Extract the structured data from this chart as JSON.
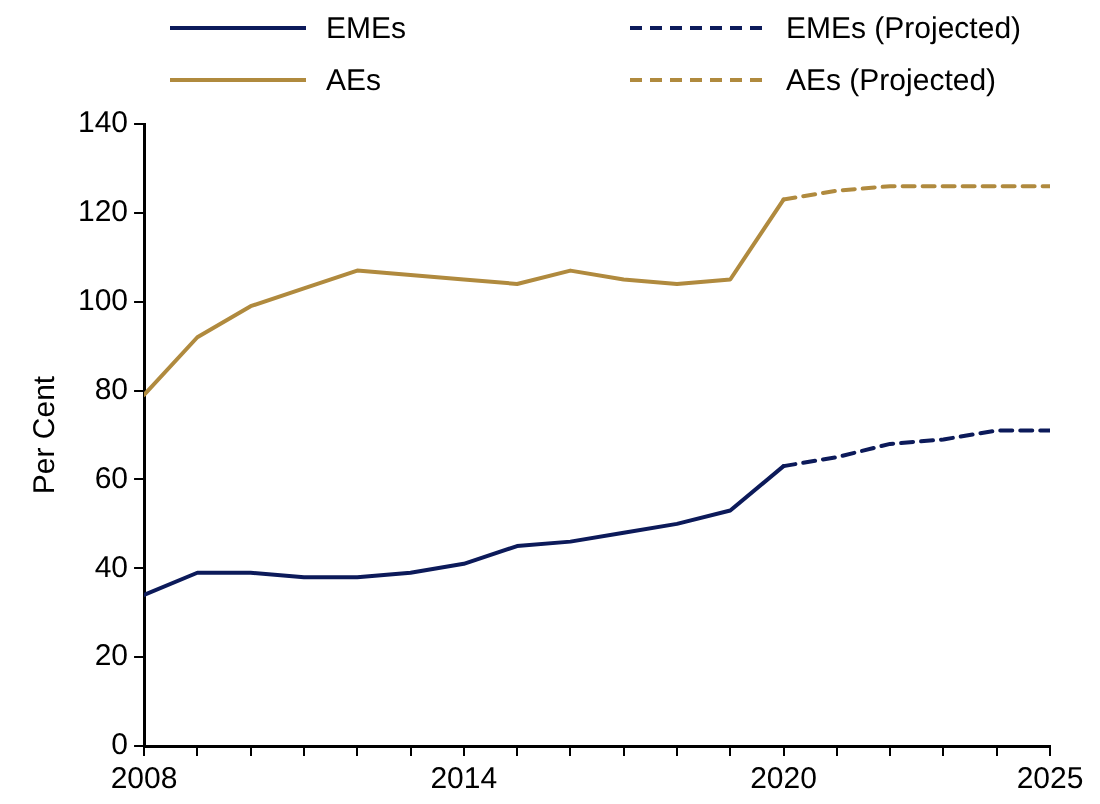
{
  "chart_data": {
    "type": "line",
    "ylabel": "Per Cent",
    "xlim": [
      2008,
      2025
    ],
    "xticks": [
      2008,
      {
        "value": 2009,
        "label": null
      },
      {
        "value": 2010,
        "label": null
      },
      {
        "value": 2011,
        "label": null
      },
      {
        "value": 2012,
        "label": null
      },
      {
        "value": 2013,
        "label": null
      },
      2014,
      {
        "value": 2015,
        "label": null
      },
      {
        "value": 2016,
        "label": null
      },
      {
        "value": 2017,
        "label": null
      },
      {
        "value": 2018,
        "label": null
      },
      {
        "value": 2019,
        "label": null
      },
      2020,
      {
        "value": 2021,
        "label": null
      },
      {
        "value": 2022,
        "label": null
      },
      {
        "value": 2023,
        "label": null
      },
      {
        "value": 2024,
        "label": null
      },
      2025
    ],
    "ylim": [
      0,
      140
    ],
    "yticks": [
      0,
      20,
      40,
      60,
      80,
      100,
      120,
      140
    ],
    "grid": false,
    "legend": "top",
    "marker": "none",
    "series": [
      {
        "name": "EMEs",
        "color": "#0c1a5a",
        "line_style": "solid",
        "x": [
          2008,
          2009,
          2010,
          2011,
          2012,
          2013,
          2014,
          2015,
          2016,
          2017,
          2018,
          2019,
          2020
        ],
        "values": [
          34,
          39,
          39,
          38,
          38,
          39,
          41,
          45,
          46,
          48,
          50,
          53,
          63
        ]
      },
      {
        "name": "EMEs (Projected)",
        "color": "#0c1a5a",
        "line_style": "dashed",
        "x": [
          2020,
          2021,
          2022,
          2023,
          2024,
          2025
        ],
        "values": [
          63,
          65,
          68,
          69,
          71,
          71
        ]
      },
      {
        "name": "AEs",
        "color": "#b08a3e",
        "line_style": "solid",
        "x": [
          2008,
          2009,
          2010,
          2011,
          2012,
          2013,
          2014,
          2015,
          2016,
          2017,
          2018,
          2019,
          2020
        ],
        "values": [
          79,
          92,
          99,
          103,
          107,
          106,
          105,
          104,
          107,
          105,
          104,
          105,
          123
        ]
      },
      {
        "name": "AEs (Projected)",
        "color": "#b08a3e",
        "line_style": "dashed",
        "x": [
          2020,
          2021,
          2022,
          2023,
          2024,
          2025
        ],
        "values": [
          123,
          125,
          126,
          126,
          126,
          126
        ]
      }
    ]
  }
}
